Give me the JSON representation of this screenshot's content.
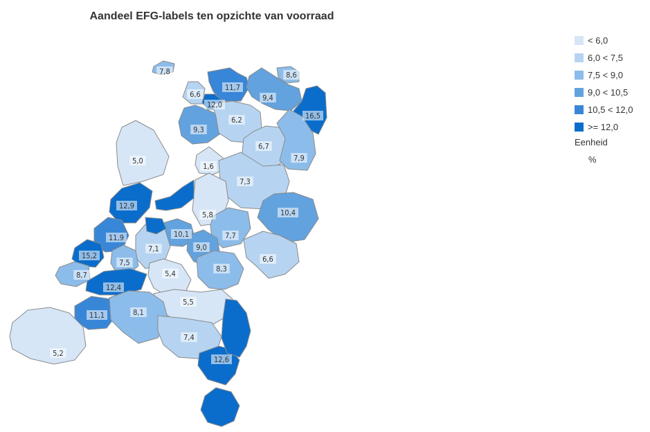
{
  "title": "Aandeel EFG-labels ten opzichte van voorraad",
  "legend": {
    "items": [
      {
        "label": "< 6,0",
        "color": "#d6e6f7"
      },
      {
        "label": "6,0 < 7,5",
        "color": "#b6d4f1"
      },
      {
        "label": "7,5 < 9,0",
        "color": "#8cbcea"
      },
      {
        "label": "9,0 < 10,5",
        "color": "#62a2df"
      },
      {
        "label": "10,5 < 12,0",
        "color": "#3886d8"
      },
      {
        "label": ">= 12,0",
        "color": "#0a6dcc"
      }
    ],
    "unit_label": "Eenheid",
    "unit_value": "%"
  },
  "regions": [
    {
      "value": "7,8",
      "cls": 2
    },
    {
      "value": "6,6",
      "cls": 1
    },
    {
      "value": "11,7",
      "cls": 4
    },
    {
      "value": "12,0",
      "cls": 5
    },
    {
      "value": "8,6",
      "cls": 2
    },
    {
      "value": "9,4",
      "cls": 3
    },
    {
      "value": "16,5",
      "cls": 5
    },
    {
      "value": "9,3",
      "cls": 3
    },
    {
      "value": "6,2",
      "cls": 1
    },
    {
      "value": "6,7",
      "cls": 1
    },
    {
      "value": "7,9",
      "cls": 2
    },
    {
      "value": "5,0",
      "cls": 0
    },
    {
      "value": "1,6",
      "cls": 0
    },
    {
      "value": "7,3",
      "cls": 1
    },
    {
      "value": "12,9",
      "cls": 5
    },
    {
      "value": "5,8",
      "cls": 0
    },
    {
      "value": "10,4",
      "cls": 3
    },
    {
      "value": "11,9",
      "cls": 4
    },
    {
      "value": "10,1",
      "cls": 3
    },
    {
      "value": "7,7",
      "cls": 2
    },
    {
      "value": "7,1",
      "cls": 1
    },
    {
      "value": "9,0",
      "cls": 3
    },
    {
      "value": "15,2",
      "cls": 5
    },
    {
      "value": "7,5",
      "cls": 2
    },
    {
      "value": "6,6",
      "cls": 1
    },
    {
      "value": "8,7",
      "cls": 2
    },
    {
      "value": "8,3",
      "cls": 2
    },
    {
      "value": "5,4",
      "cls": 0
    },
    {
      "value": "12,4",
      "cls": 5
    },
    {
      "value": "5,5",
      "cls": 0
    },
    {
      "value": "11,1",
      "cls": 4
    },
    {
      "value": "8,1",
      "cls": 2
    },
    {
      "value": "7,4",
      "cls": 1
    },
    {
      "value": "12,6",
      "cls": 5
    },
    {
      "value": "5,2",
      "cls": 0
    },
    {
      "value": "",
      "cls": 5
    },
    {
      "value": "",
      "cls": 5
    },
    {
      "value": "",
      "cls": 5
    },
    {
      "value": "",
      "cls": 5
    }
  ]
}
